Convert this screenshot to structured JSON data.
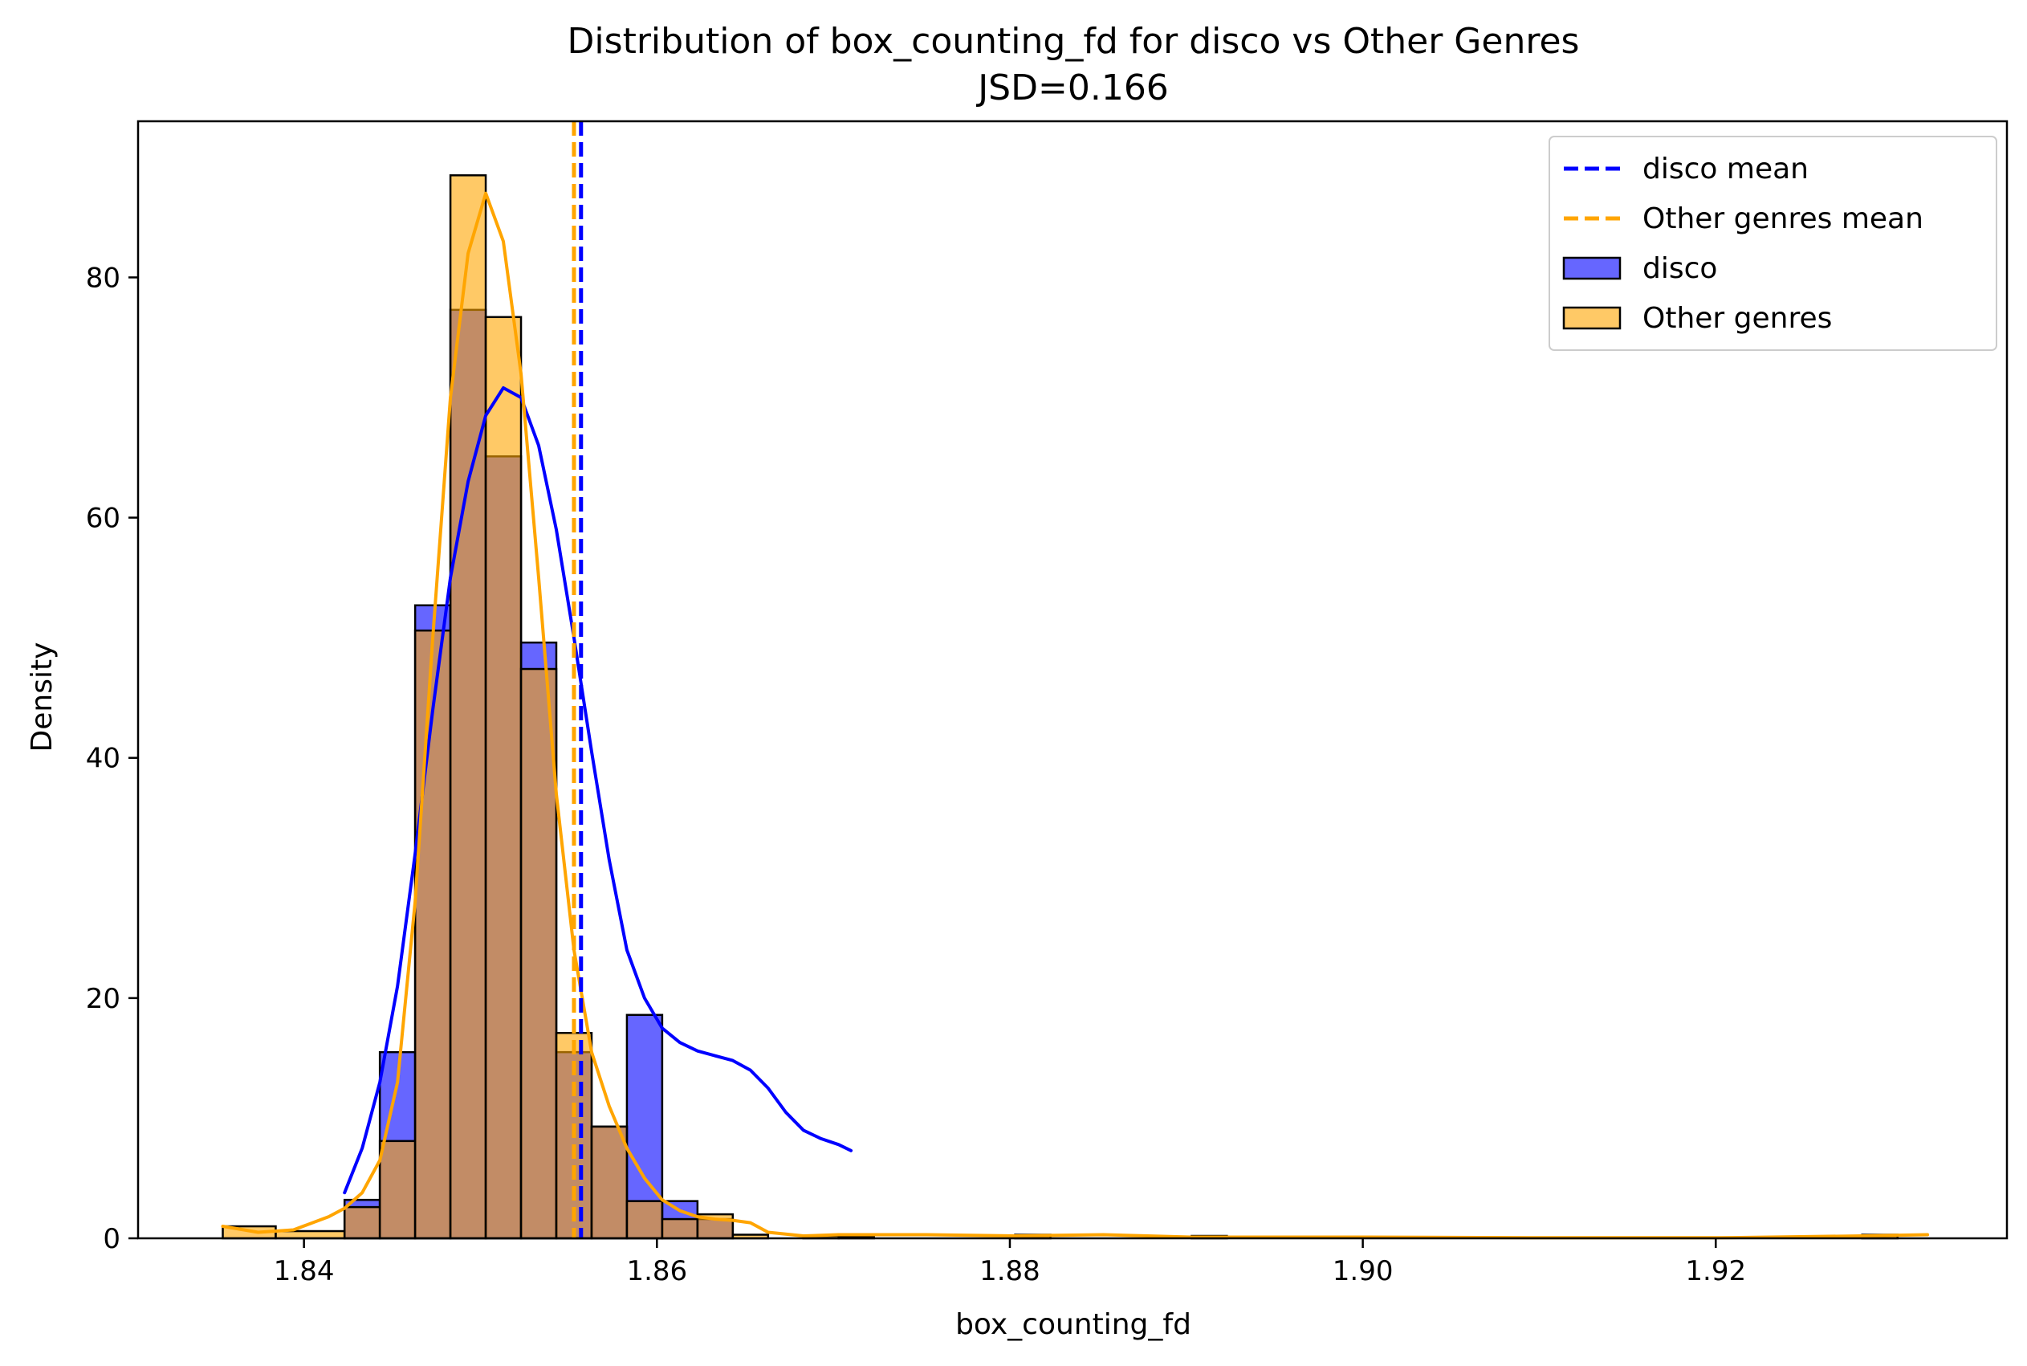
{
  "chart_data": {
    "type": "histogram",
    "title": "Distribution of box_counting_fd for disco vs Other Genres",
    "subtitle": "JSD=0.166",
    "xlabel": "box_counting_fd",
    "ylabel": "Density",
    "xlim": [
      1.8306,
      1.9365
    ],
    "ylim": [
      0,
      93
    ],
    "x_ticks": [
      1.84,
      1.86,
      1.88,
      1.9,
      1.92
    ],
    "x_tick_labels": [
      "1.84",
      "1.86",
      "1.88",
      "1.90",
      "1.92"
    ],
    "y_ticks": [
      0,
      20,
      40,
      60,
      80
    ],
    "y_tick_labels": [
      "0",
      "20",
      "40",
      "60",
      "80"
    ],
    "grid": false,
    "legend_position": "top-right",
    "legend": [
      {
        "label": "disco mean",
        "kind": "dashed-line",
        "color": "#0000ff"
      },
      {
        "label": "Other genres mean",
        "kind": "dashed-line",
        "color": "#ffa500"
      },
      {
        "label": "disco",
        "kind": "patch",
        "color": "#0000ff"
      },
      {
        "label": "Other genres",
        "kind": "patch",
        "color": "#ffa500"
      }
    ],
    "series": [
      {
        "name": "disco",
        "color": "#0000ff",
        "fill_opacity": 0.6,
        "bins": [
          {
            "x0": 1.8423,
            "x1": 1.8443,
            "y": 3.2
          },
          {
            "x0": 1.8443,
            "x1": 1.8463,
            "y": 15.5
          },
          {
            "x0": 1.8463,
            "x1": 1.8483,
            "y": 52.7
          },
          {
            "x0": 1.8483,
            "x1": 1.8503,
            "y": 77.3
          },
          {
            "x0": 1.8503,
            "x1": 1.8523,
            "y": 65.1
          },
          {
            "x0": 1.8523,
            "x1": 1.8543,
            "y": 49.6
          },
          {
            "x0": 1.8543,
            "x1": 1.8563,
            "y": 15.5
          },
          {
            "x0": 1.8563,
            "x1": 1.8583,
            "y": 9.3
          },
          {
            "x0": 1.8583,
            "x1": 1.8603,
            "y": 18.6
          },
          {
            "x0": 1.8603,
            "x1": 1.8623,
            "y": 3.1
          },
          {
            "x0": 1.8623,
            "x1": 1.8643,
            "y": 1.6
          }
        ],
        "kde": {
          "x": [
            1.8423,
            1.8433,
            1.8443,
            1.8453,
            1.8463,
            1.8473,
            1.8483,
            1.8493,
            1.8503,
            1.8513,
            1.8523,
            1.8533,
            1.8543,
            1.8553,
            1.8563,
            1.8573,
            1.8583,
            1.8593,
            1.8603,
            1.8613,
            1.8623,
            1.8633,
            1.8643,
            1.8653,
            1.8663,
            1.8673,
            1.8683,
            1.8693,
            1.8703,
            1.871
          ],
          "y": [
            3.8,
            7.5,
            13.0,
            21.0,
            32.0,
            44.0,
            55.0,
            63.0,
            68.5,
            70.8,
            70.0,
            66.0,
            59.0,
            50.0,
            40.5,
            31.5,
            24.0,
            20.0,
            17.5,
            16.3,
            15.6,
            15.2,
            14.8,
            14.0,
            12.5,
            10.5,
            9.0,
            8.3,
            7.8,
            7.3
          ]
        }
      },
      {
        "name": "Other genres",
        "color": "#ffa500",
        "fill_opacity": 0.6,
        "bins": [
          {
            "x0": 1.8354,
            "x1": 1.8384,
            "y": 1.0
          },
          {
            "x0": 1.8384,
            "x1": 1.8423,
            "y": 0.6
          },
          {
            "x0": 1.8423,
            "x1": 1.8443,
            "y": 2.6
          },
          {
            "x0": 1.8443,
            "x1": 1.8463,
            "y": 8.1
          },
          {
            "x0": 1.8463,
            "x1": 1.8483,
            "y": 50.6
          },
          {
            "x0": 1.8483,
            "x1": 1.8503,
            "y": 88.5
          },
          {
            "x0": 1.8503,
            "x1": 1.8523,
            "y": 76.7
          },
          {
            "x0": 1.8523,
            "x1": 1.8543,
            "y": 47.4
          },
          {
            "x0": 1.8543,
            "x1": 1.8563,
            "y": 17.1
          },
          {
            "x0": 1.8563,
            "x1": 1.8583,
            "y": 9.3
          },
          {
            "x0": 1.8583,
            "x1": 1.8603,
            "y": 3.1
          },
          {
            "x0": 1.8603,
            "x1": 1.8623,
            "y": 1.6
          },
          {
            "x0": 1.8623,
            "x1": 1.8643,
            "y": 2.0
          },
          {
            "x0": 1.8643,
            "x1": 1.8663,
            "y": 0.3
          },
          {
            "x0": 1.8683,
            "x1": 1.8703,
            "y": 0.2
          },
          {
            "x0": 1.8703,
            "x1": 1.8723,
            "y": 0.1
          },
          {
            "x0": 1.8803,
            "x1": 1.8823,
            "y": 0.3
          },
          {
            "x0": 1.8903,
            "x1": 1.8923,
            "y": 0.2
          },
          {
            "x0": 1.9283,
            "x1": 1.9303,
            "y": 0.3
          }
        ],
        "kde": {
          "x": [
            1.8354,
            1.8374,
            1.8394,
            1.8414,
            1.8423,
            1.8433,
            1.8443,
            1.8453,
            1.8463,
            1.8473,
            1.8483,
            1.8493,
            1.8503,
            1.8513,
            1.8523,
            1.8533,
            1.8543,
            1.8553,
            1.8563,
            1.8573,
            1.8583,
            1.8593,
            1.8603,
            1.8613,
            1.8623,
            1.8633,
            1.8643,
            1.8653,
            1.8663,
            1.8683,
            1.8703,
            1.8753,
            1.8803,
            1.8853,
            1.8903,
            1.8953,
            1.9003,
            1.9103,
            1.9203,
            1.9283,
            1.932
          ],
          "y": [
            1.0,
            0.5,
            0.7,
            1.8,
            2.5,
            3.8,
            6.5,
            13.0,
            28.0,
            50.0,
            70.0,
            82.0,
            87.0,
            83.0,
            72.0,
            55.0,
            37.0,
            24.0,
            15.5,
            11.0,
            7.5,
            5.0,
            3.2,
            2.3,
            1.8,
            1.6,
            1.5,
            1.3,
            0.5,
            0.2,
            0.3,
            0.3,
            0.2,
            0.3,
            0.1,
            0.1,
            0.1,
            0.05,
            0.05,
            0.2,
            0.3
          ]
        }
      }
    ],
    "mean_lines": [
      {
        "name": "Other genres mean",
        "x": 1.8553,
        "color": "#ffa500",
        "style": "dashed"
      },
      {
        "name": "disco mean",
        "x": 1.8557,
        "color": "#0000ff",
        "style": "dashed"
      }
    ]
  }
}
